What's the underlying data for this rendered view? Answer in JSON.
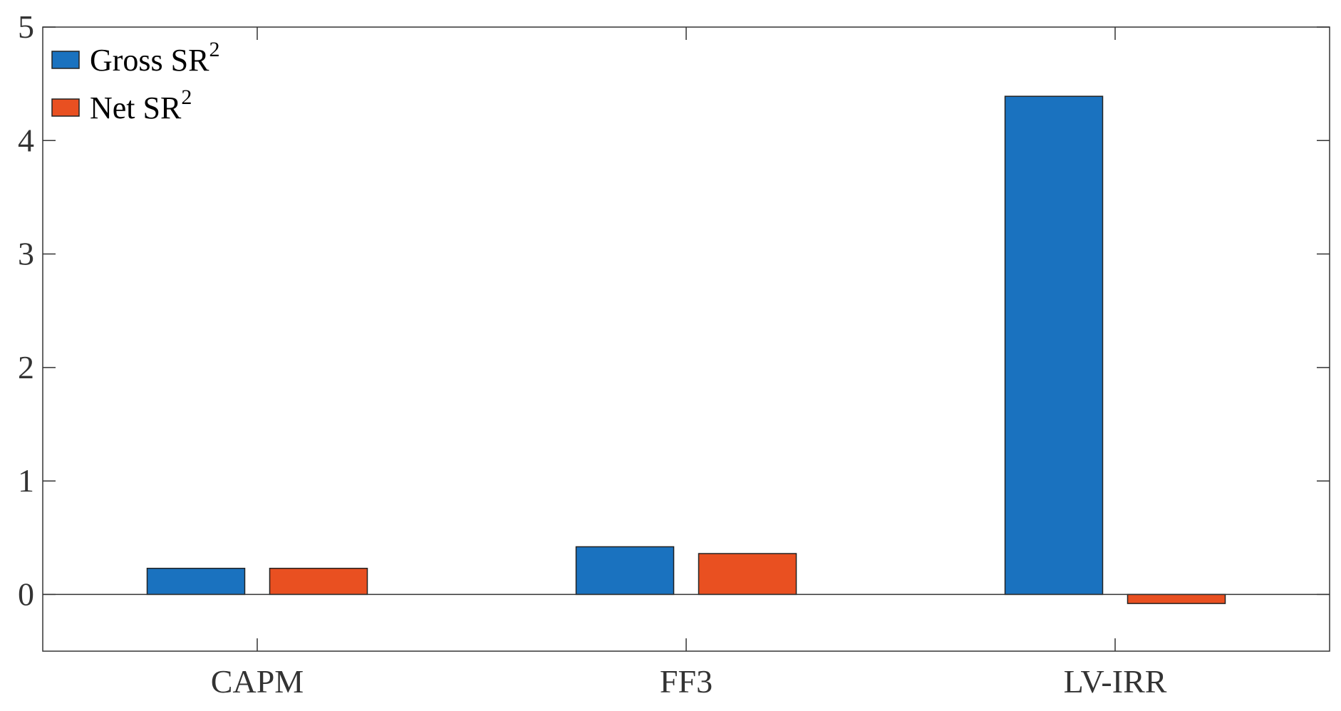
{
  "chart_data": {
    "type": "bar",
    "categories": [
      "CAPM",
      "FF3",
      "LV-IRR"
    ],
    "series": [
      {
        "name": "Gross SR",
        "superscript": "2",
        "values": [
          0.23,
          0.42,
          4.39
        ],
        "color": "#1a72bf"
      },
      {
        "name": "Net SR",
        "superscript": "2",
        "values": [
          0.23,
          0.36,
          -0.08
        ],
        "color": "#e95021"
      }
    ],
    "yticks": [
      0,
      1,
      2,
      3,
      4,
      5
    ],
    "ylim": [
      -0.5,
      5
    ],
    "title": "",
    "xlabel": "",
    "ylabel": "",
    "grid": false,
    "legend": "top-left",
    "baseline": 0
  }
}
